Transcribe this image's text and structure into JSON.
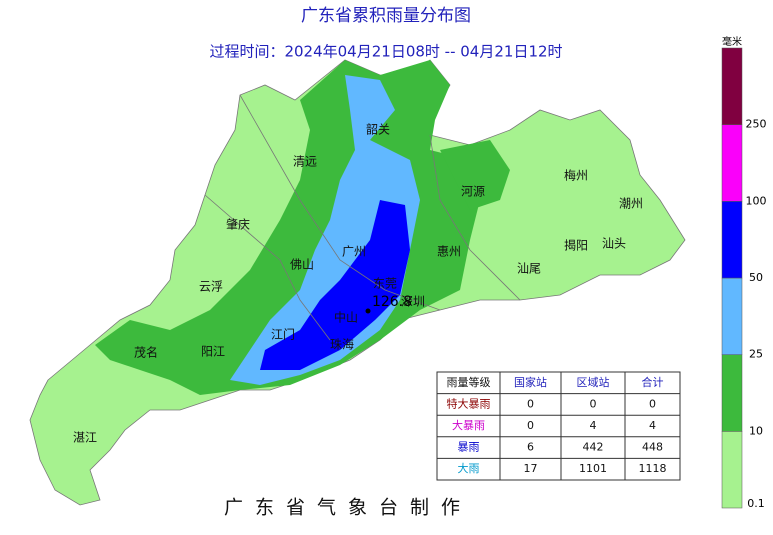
{
  "title": "广东省累积雨量分布图",
  "subtitle": "过程时间：2024年04月21日08时 -- 04月21日12时",
  "cities": [
    "韶关",
    "清远",
    "河源",
    "梅州",
    "潮州",
    "肇庆",
    "揭阳",
    "汕头",
    "广州",
    "惠州",
    "佛山",
    "汕尾",
    "云浮",
    "东莞",
    "深圳",
    "中山",
    "江门",
    "茂名",
    "阳江",
    "珠海",
    "湛江"
  ],
  "max_value": 126.8,
  "legend": {
    "unit": "毫米",
    "levels": [
      {
        "value": 0.1,
        "color": "#a6f28f"
      },
      {
        "value": 10,
        "color": "#3dba3d"
      },
      {
        "value": 25,
        "color": "#61b8ff"
      },
      {
        "value": 50,
        "color": "#0000fe"
      },
      {
        "value": 100,
        "color": "#fa00fa"
      },
      {
        "value": 250,
        "color": "#800040"
      }
    ]
  },
  "table": {
    "header": [
      "雨量等级",
      "国家站",
      "区域站",
      "合计"
    ],
    "rows": [
      {
        "grade": "特大暴雨",
        "color": "#8b0000",
        "values": [
          0,
          0,
          0
        ]
      },
      {
        "grade": "大暴雨",
        "color": "#cc00cc",
        "values": [
          0,
          4,
          4
        ]
      },
      {
        "grade": "暴雨",
        "color": "#0000cc",
        "values": [
          6,
          442,
          448
        ]
      },
      {
        "grade": "大雨",
        "color": "#0099cc",
        "values": [
          17,
          1101,
          1118
        ]
      }
    ]
  },
  "footer": "广东省气象台制作"
}
